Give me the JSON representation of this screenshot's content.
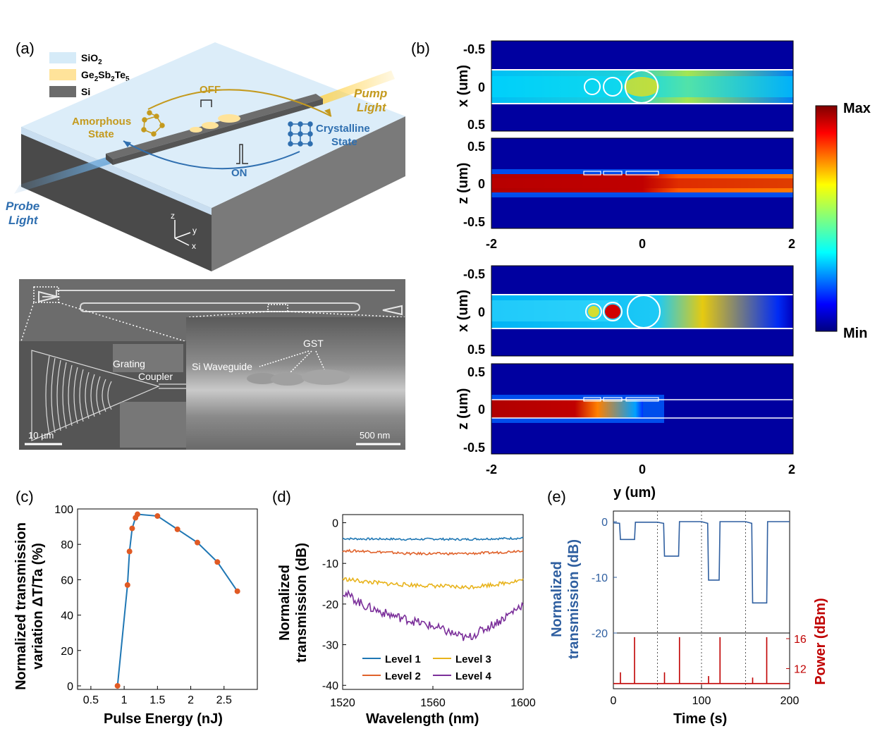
{
  "panels": {
    "a": {
      "label": "(a)",
      "legend": [
        {
          "name": "SiO",
          "sub": "2",
          "color": "#d6ebf8"
        },
        {
          "name": "Ge",
          "sub1": "2",
          "mid": "Sb",
          "sub2": "2",
          "mid2": "Te",
          "sub3": "5",
          "color": "#ffe39a"
        },
        {
          "name": "Si",
          "color": "#6b6b6b"
        }
      ],
      "off_label": "OFF",
      "on_label": "ON",
      "amorphous_label_1": "Amorphous",
      "amorphous_label_2": "State",
      "crystalline_label_1": "Crystalline",
      "crystalline_label_2": "State",
      "pump_label_1": "Pump",
      "pump_label_2": "Light",
      "probe_label_1": "Probe",
      "probe_label_2": "Light",
      "axis_z": "z",
      "axis_y": "y",
      "axis_x": "x",
      "colors": {
        "gold": "#c49a1e",
        "blue": "#2f6fb0"
      },
      "sem": {
        "grating_1": "Grating",
        "grating_2": "Coupler",
        "si_waveguide": "Si Waveguide",
        "gst": "GST",
        "scale_left": "10 µm",
        "scale_right": "500 nm"
      }
    },
    "b": {
      "label": "(b)",
      "maps": [
        {
          "ylabel": "x (um)",
          "yticks": [
            "-0.5",
            "0",
            "0.5"
          ]
        },
        {
          "ylabel": "z (um)",
          "yticks": [
            "0.5",
            "0",
            "-0.5"
          ]
        },
        {
          "ylabel": "x (um)",
          "yticks": [
            "-0.5",
            "0",
            "0.5"
          ]
        },
        {
          "ylabel": "z (um)",
          "yticks": [
            "0.5",
            "0",
            "-0.5"
          ]
        }
      ],
      "xticks": [
        "-2",
        "0",
        "2"
      ],
      "xlabel": "y (um)",
      "colorbar": {
        "max": "Max",
        "min": "Min"
      }
    },
    "c": {
      "label": "(c)",
      "chart_data": {
        "type": "line",
        "x": [
          0.9,
          1.05,
          1.08,
          1.12,
          1.17,
          1.2,
          1.5,
          1.8,
          2.1,
          2.4,
          2.7
        ],
        "y": [
          0,
          57,
          76,
          89,
          95,
          97,
          96,
          88.5,
          81,
          70,
          53.5
        ],
        "xlabel": "Pulse Energy (nJ)",
        "ylabel_1": "Normalized transmission",
        "ylabel_2": "variation ΔT/Ta (%)",
        "xlim": [
          0.3,
          3.0
        ],
        "ylim": [
          -2,
          100
        ],
        "xticks": [
          "0.5",
          "1",
          "1.5",
          "2",
          "2.5"
        ],
        "yticks": [
          "0",
          "20",
          "40",
          "60",
          "80",
          "100"
        ],
        "line_color": "#1f77b4",
        "marker_color": "#e05a24"
      }
    },
    "d": {
      "label": "(d)",
      "chart_data": {
        "type": "line",
        "xlabel": "Wavelength (nm)",
        "ylabel_1": "Normalized",
        "ylabel_2": "transmission (dB)",
        "xlim": [
          1520,
          1600
        ],
        "ylim": [
          -41,
          2
        ],
        "xticks": [
          "1520",
          "1560",
          "1600"
        ],
        "yticks": [
          "0",
          "-10",
          "-20",
          "-30",
          "-40"
        ],
        "x": [
          1520,
          1530,
          1540,
          1550,
          1560,
          1570,
          1575,
          1580,
          1590,
          1600
        ],
        "series": [
          {
            "name": "Level 1",
            "color": "#1f77b4",
            "values": [
              -3.9,
              -4.0,
              -4.0,
              -4.1,
              -4.0,
              -4.1,
              -4.1,
              -4.0,
              -3.9,
              -3.8
            ]
          },
          {
            "name": "Level 2",
            "color": "#e0622b",
            "values": [
              -6.9,
              -7.0,
              -7.3,
              -7.6,
              -7.6,
              -7.6,
              -7.6,
              -7.5,
              -7.3,
              -6.8
            ]
          },
          {
            "name": "Level 3",
            "color": "#e8b31c",
            "values": [
              -13.8,
              -14.5,
              -15.0,
              -15.3,
              -15.5,
              -15.8,
              -15.9,
              -15.6,
              -15.0,
              -14.0
            ]
          },
          {
            "name": "Level 4",
            "color": "#7b2f9a",
            "values": [
              -17.0,
              -20.5,
              -22.5,
              -24.0,
              -25.5,
              -27.5,
              -28.5,
              -27.0,
              -24.0,
              -20.0
            ]
          }
        ]
      }
    },
    "e": {
      "label": "(e)",
      "chart_data": {
        "type": "line",
        "xlabel": "Time (s)",
        "ylabel_left_1": "Normalized",
        "ylabel_left_2": "transmission (dB)",
        "ylabel_right": "Power (dBm)",
        "xlim": [
          0,
          200
        ],
        "xticks": [
          "0",
          "100",
          "200"
        ],
        "yticks_left": [
          "0",
          "-10",
          "-20"
        ],
        "yticks_right": [
          "16",
          "12"
        ],
        "transmission_color": "#2f5fa0",
        "power_color": "#c00000",
        "transmission": {
          "t": [
            0,
            7,
            8,
            24,
            25,
            50,
            57,
            58,
            74,
            75,
            100,
            107,
            108,
            120,
            121,
            150,
            157,
            158,
            174,
            175,
            200
          ],
          "db": [
            -0.2,
            -0.3,
            -3.2,
            -3.2,
            -0.1,
            -0.1,
            -0.3,
            -6.2,
            -6.2,
            0,
            0,
            -0.3,
            -10.5,
            -10.5,
            0,
            0,
            -0.3,
            -14.6,
            -14.6,
            0,
            0
          ]
        },
        "pulses": {
          "t": [
            8,
            24,
            58,
            75,
            108,
            121,
            158,
            174
          ],
          "dbm": [
            11.5,
            16.2,
            11.5,
            16.2,
            11.0,
            16.2,
            10.8,
            16.2
          ]
        },
        "power_baseline": 10.0,
        "dividers_t": [
          50,
          100,
          150
        ]
      }
    }
  }
}
